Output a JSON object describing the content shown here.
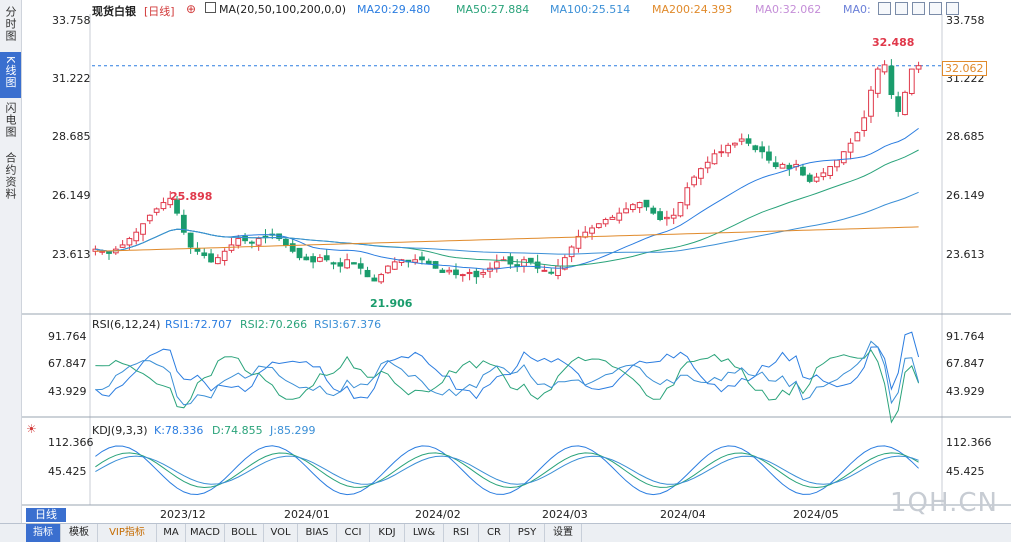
{
  "sidebar": {
    "tabs": [
      {
        "label": "分时图",
        "active": false
      },
      {
        "label": "K线图",
        "active": true
      },
      {
        "label": "闪电图",
        "active": false
      },
      {
        "label": "合约资料",
        "active": false
      }
    ]
  },
  "header": {
    "title": "现货白银",
    "period": "[日线]",
    "ma_params": "MA(20,50,100,200,0,0)",
    "ma_values": [
      {
        "text": "MA20:29.480",
        "color": "#2b7de0"
      },
      {
        "text": "MA50:27.884",
        "color": "#2aa37a"
      },
      {
        "text": "MA100:25.514",
        "color": "#3b8fd6"
      },
      {
        "text": "MA200:24.393",
        "color": "#e08a2b"
      },
      {
        "text": "MA0:32.062",
        "color": "#c58ed8"
      },
      {
        "text": "MA0:",
        "color": "#6a7fd8"
      }
    ],
    "toolbar_icons": [
      "expand-icon",
      "crosshair-icon",
      "table-icon",
      "grid-icon",
      "close-icon"
    ]
  },
  "price_panel": {
    "axis_labels": [
      "33.758",
      "31.222",
      "28.685",
      "26.149",
      "23.613"
    ],
    "current_price": "32.062",
    "high_marker": "32.488",
    "left_high": "25.898",
    "low_marker": "21.906"
  },
  "rsi_panel": {
    "title": "RSI(6,12,24)",
    "values": [
      {
        "text": "RSI1:72.707",
        "color": "#2b7de0"
      },
      {
        "text": "RSI2:70.266",
        "color": "#2aa37a"
      },
      {
        "text": "RSI3:67.376",
        "color": "#3b8fd6"
      }
    ],
    "axis_labels": [
      "91.764",
      "67.847",
      "43.929"
    ]
  },
  "kdj_panel": {
    "title": "KDJ(9,3,3)",
    "values": [
      {
        "text": "K:78.336",
        "color": "#2b7de0"
      },
      {
        "text": "D:74.855",
        "color": "#2aa37a"
      },
      {
        "text": "J:85.299",
        "color": "#3b8fd6"
      }
    ],
    "axis_labels": [
      "112.366",
      "45.425"
    ]
  },
  "x_axis": {
    "labels": [
      "2023/12",
      "2024/01",
      "2024/02",
      "2024/03",
      "2024/04",
      "2024/05"
    ]
  },
  "period_selector": "日线",
  "bottom_tabs": [
    {
      "label": "指标",
      "active": true,
      "vip": false
    },
    {
      "label": "模板",
      "active": false,
      "vip": false
    },
    {
      "label": "VIP指标",
      "active": false,
      "vip": true
    },
    {
      "label": "MA",
      "active": false,
      "vip": false
    },
    {
      "label": "MACD",
      "active": false,
      "vip": false
    },
    {
      "label": "BOLL",
      "active": false,
      "vip": false
    },
    {
      "label": "VOL",
      "active": false,
      "vip": false
    },
    {
      "label": "BIAS",
      "active": false,
      "vip": false
    },
    {
      "label": "CCI",
      "active": false,
      "vip": false
    },
    {
      "label": "KDJ",
      "active": false,
      "vip": false
    },
    {
      "label": "LW&",
      "active": false,
      "vip": false
    },
    {
      "label": "RSI",
      "active": false,
      "vip": false
    },
    {
      "label": "CR",
      "active": false,
      "vip": false
    },
    {
      "label": "PSY",
      "active": false,
      "vip": false
    },
    {
      "label": "设置",
      "active": false,
      "vip": false
    }
  ],
  "watermark": "1QH.CN",
  "colors": {
    "up": "#e0394b",
    "down": "#1a9c6c",
    "ma20": "#2b7de0",
    "ma50": "#2aa37a",
    "ma100": "#3b8fd6",
    "ma200": "#e08a2b",
    "accent": "#3a6fcf"
  },
  "chart_data": {
    "type": "candlestick",
    "y_range": [
      21.0,
      34.5
    ],
    "series_close_approx": [
      23.4,
      23.3,
      23.2,
      23.4,
      23.6,
      23.9,
      24.2,
      24.6,
      25.0,
      25.3,
      25.6,
      25.8,
      25.1,
      24.2,
      23.5,
      23.3,
      23.1,
      22.8,
      23.0,
      23.3,
      23.6,
      23.9,
      23.8,
      23.7,
      23.9,
      24.0,
      24.1,
      23.9,
      23.6,
      23.3,
      23.0,
      22.9,
      22.8,
      23.0,
      22.9,
      22.7,
      22.6,
      22.9,
      22.7,
      22.5,
      22.1,
      21.9,
      22.2,
      22.6,
      22.8,
      22.9,
      22.8,
      22.9,
      22.9,
      22.7,
      22.5,
      22.3,
      22.4,
      22.2,
      22.2,
      22.3,
      22.1,
      22.3,
      22.5,
      22.8,
      22.9,
      22.7,
      22.6,
      22.9,
      22.8,
      22.5,
      22.4,
      22.3,
      22.6,
      23.0,
      23.5,
      24.0,
      24.2,
      24.4,
      24.6,
      24.8,
      24.9,
      25.1,
      25.3,
      25.5,
      25.6,
      25.4,
      25.1,
      24.8,
      24.9,
      25.0,
      25.6,
      26.3,
      26.8,
      27.2,
      27.5,
      27.9,
      28.0,
      28.3,
      28.4,
      28.6,
      28.4,
      28.1,
      28.0,
      27.6,
      27.3,
      27.4,
      27.2,
      27.4,
      26.9,
      26.6,
      26.8,
      27.0,
      27.3,
      27.6,
      28.0,
      28.4,
      28.9,
      29.6,
      30.9,
      31.9,
      32.1,
      30.7,
      29.9,
      30.8,
      31.9,
      32.06
    ]
  }
}
